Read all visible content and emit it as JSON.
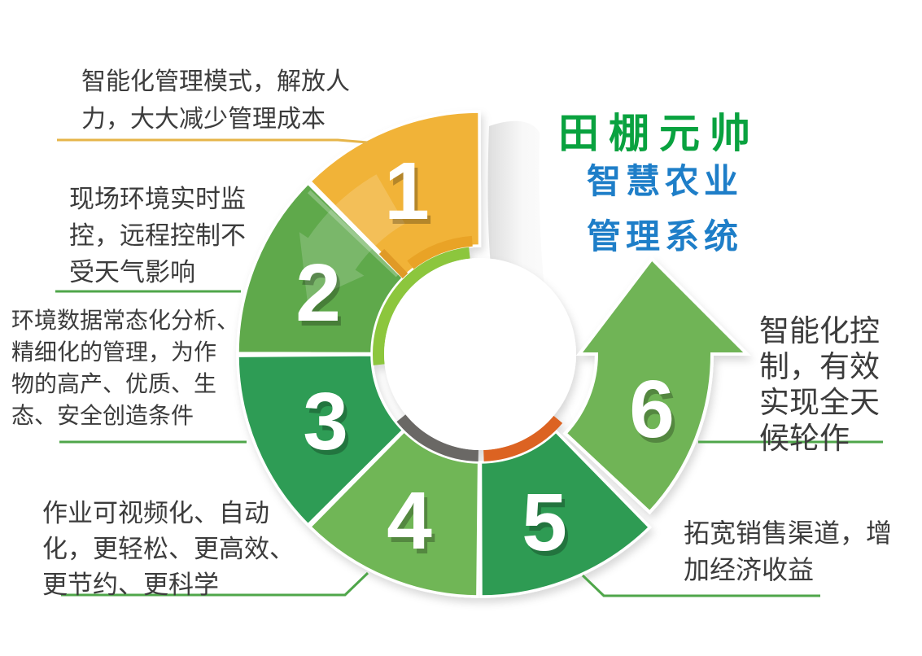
{
  "title": {
    "brand": "田棚元帅",
    "sub1": "智慧农业",
    "sub2": "管理系统"
  },
  "colors": {
    "brand_green": "#09A23F",
    "subtitle_blue": "#1E7EC8",
    "text": "#3C3C3C",
    "yellow_line": "#E6B54A",
    "green_line": "#4FA64A",
    "rim_lime": "#8CC63E",
    "rim_gray": "#6A6765",
    "rim_orange": "#DC6321",
    "inner_yellow_edge": "#E9A325",
    "edge_orange_sliver": "#E09A28"
  },
  "wheel": {
    "segments": [
      {
        "num": "1",
        "color": "#F1B338"
      },
      {
        "num": "2",
        "color": "#5FA94C"
      },
      {
        "num": "3",
        "color": "#2E9C55"
      },
      {
        "num": "4",
        "color": "#70B656"
      },
      {
        "num": "5",
        "color": "#2E9B52"
      },
      {
        "num": "6",
        "color": "#6FB457"
      }
    ]
  },
  "labels": {
    "l1": {
      "lines": [
        "智能化管理模式，解放人",
        "力，大大减少管理成本"
      ]
    },
    "l2": {
      "lines": [
        "现场环境实时监",
        "控，远程控制不",
        "受天气影响"
      ]
    },
    "l3": {
      "lines": [
        "环境数据常态化分析、",
        "精细化的管理，为作",
        "物的高产、优质、生",
        "态、安全创造条件"
      ]
    },
    "l4": {
      "lines": [
        "作业可视频化、自动",
        "化，更轻松、更高效、",
        "更节约、更科学"
      ]
    },
    "l5": {
      "lines": [
        "智能化控",
        "制，有效",
        "实现全天",
        "候轮作"
      ]
    },
    "l6": {
      "lines": [
        "拓宽销售渠道，增",
        "加经济收益"
      ]
    }
  }
}
